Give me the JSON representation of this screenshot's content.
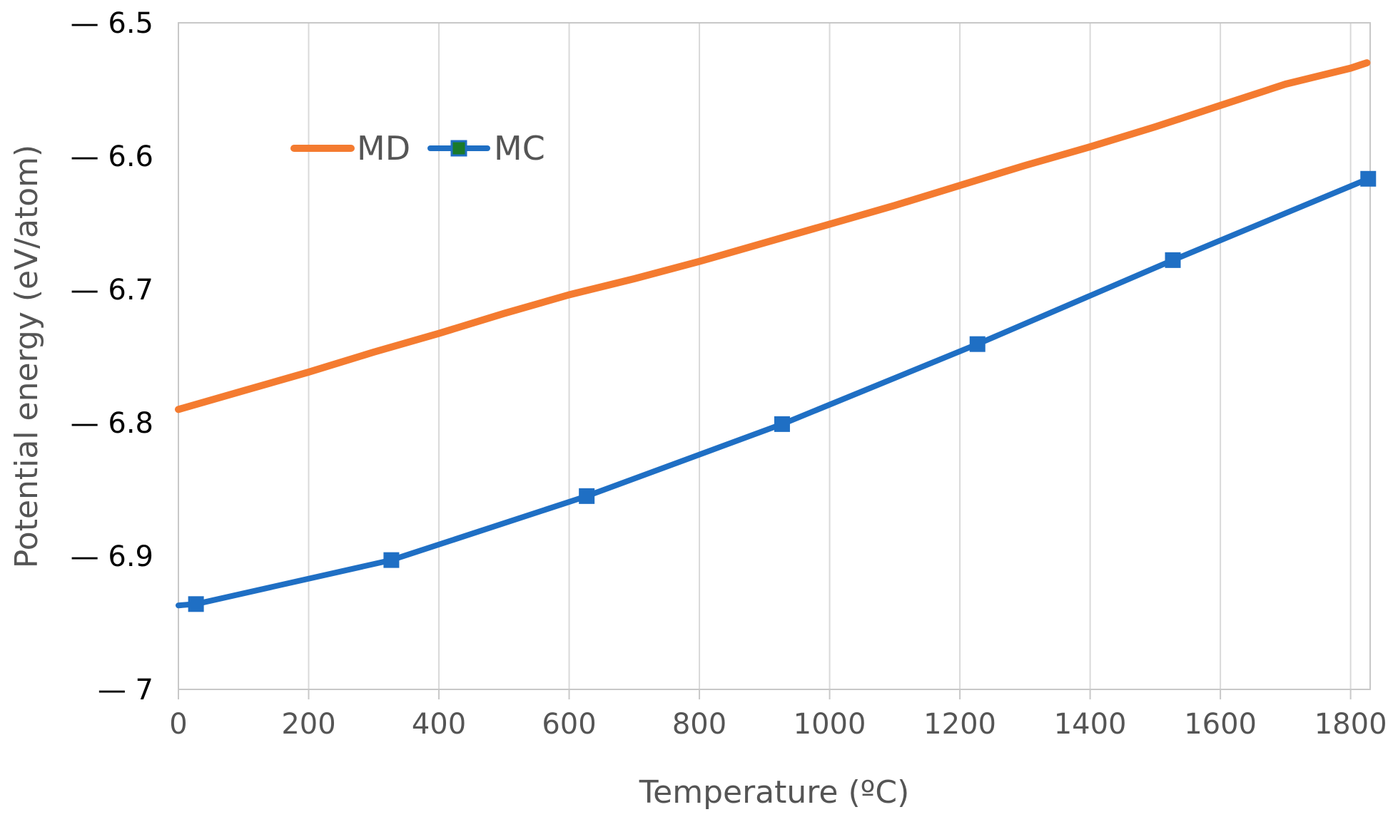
{
  "chart_data": {
    "type": "line",
    "title": "",
    "xlabel": "Temperature (ºC)",
    "ylabel": "Potential energy  (eV/atom)",
    "xlim": [
      0,
      1830
    ],
    "ylim": [
      -7.0,
      -6.5
    ],
    "x_ticks": [
      0,
      200,
      400,
      600,
      800,
      1000,
      1200,
      1400,
      1600,
      1800
    ],
    "x_tick_labels": [
      "0",
      "200",
      "400",
      "600",
      "800",
      "1000",
      "1200",
      "1400",
      "1600",
      "1800"
    ],
    "y_ticks": [
      -6.5,
      -6.6,
      -6.7,
      -6.8,
      -6.9,
      -7.0
    ],
    "y_tick_labels": [
      "— 6.5",
      "— 6.6",
      "— 6.7",
      "— 6.8",
      "— 6.9",
      "— 7"
    ],
    "grid": {
      "vertical": true,
      "horizontal": false
    },
    "legend_position": "top-left",
    "series": [
      {
        "name": "MD",
        "color": "#F47B30",
        "marker": "none",
        "x": [
          0,
          100,
          200,
          300,
          400,
          500,
          600,
          700,
          800,
          900,
          1000,
          1100,
          1200,
          1300,
          1400,
          1500,
          1600,
          1700,
          1800,
          1825
        ],
        "y": [
          -6.79,
          -6.776,
          -6.762,
          -6.747,
          -6.733,
          -6.718,
          -6.704,
          -6.692,
          -6.679,
          -6.665,
          -6.651,
          -6.637,
          -6.622,
          -6.607,
          -6.593,
          -6.578,
          -6.562,
          -6.546,
          -6.534,
          -6.53
        ]
      },
      {
        "name": "MC",
        "color": "#1F6FC4",
        "marker": "square",
        "x": [
          0,
          27,
          327,
          627,
          927,
          1227,
          1527,
          1827
        ],
        "y": [
          -6.937,
          -6.936,
          -6.903,
          -6.855,
          -6.801,
          -6.741,
          -6.678,
          -6.617
        ]
      }
    ]
  }
}
